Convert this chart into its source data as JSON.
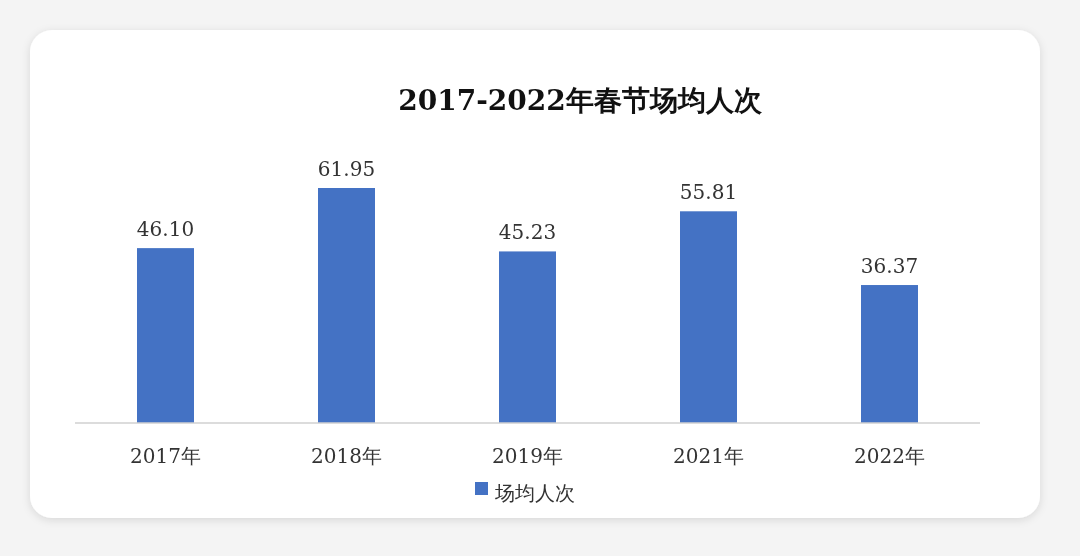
{
  "chart_data": {
    "type": "bar",
    "title": "2017-2022年春节场均人次",
    "categories": [
      "2017年",
      "2018年",
      "2019年",
      "2021年",
      "2022年"
    ],
    "series": [
      {
        "name": "场均人次",
        "color": "#4472c4",
        "values": [
          46.1,
          61.95,
          45.23,
          55.81,
          36.37
        ],
        "value_labels": [
          "46.10",
          "61.95",
          "45.23",
          "55.81",
          "36.37"
        ]
      }
    ],
    "legend": "bottom"
  }
}
